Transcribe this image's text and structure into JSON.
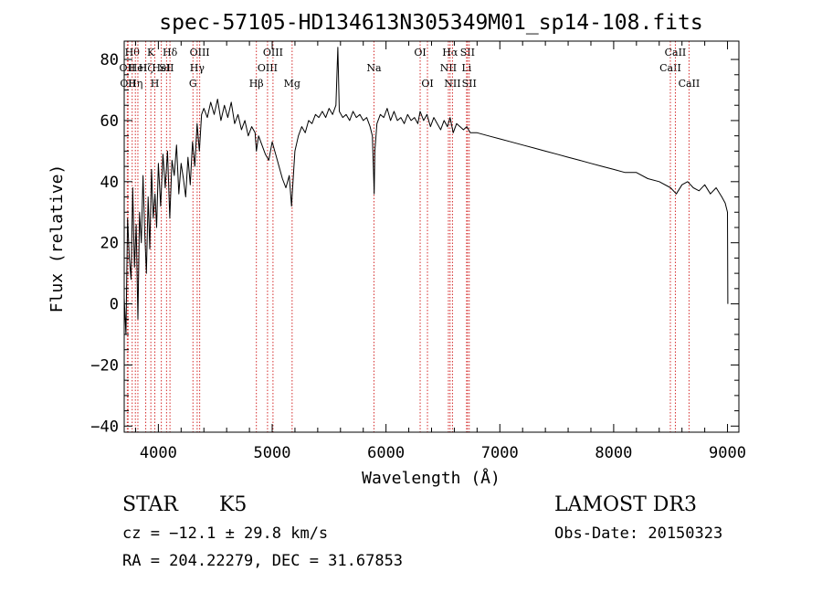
{
  "chart_data": {
    "type": "line",
    "title": "spec-57105-HD134613N305349M01_sp14-108.fits",
    "xlabel": "Wavelength (Å)",
    "ylabel": "Flux (relative)",
    "xlim": [
      3700,
      9100
    ],
    "ylim": [
      -42,
      86
    ],
    "xticks": [
      4000,
      5000,
      6000,
      7000,
      8000,
      9000
    ],
    "yticks": [
      -40,
      -20,
      0,
      20,
      40,
      60,
      80
    ],
    "xtick_labels": [
      "4000",
      "5000",
      "6000",
      "7000",
      "8000",
      "9000"
    ],
    "ytick_labels": [
      "−40",
      "−20",
      "0",
      "20",
      "40",
      "60",
      "80"
    ],
    "grid": false,
    "series": [
      {
        "name": "flux",
        "x": [
          3700,
          3715,
          3730,
          3745,
          3760,
          3775,
          3790,
          3805,
          3820,
          3835,
          3850,
          3865,
          3880,
          3895,
          3910,
          3925,
          3940,
          3955,
          3970,
          3985,
          4000,
          4020,
          4040,
          4060,
          4080,
          4100,
          4120,
          4140,
          4160,
          4180,
          4200,
          4220,
          4240,
          4260,
          4280,
          4300,
          4320,
          4340,
          4360,
          4380,
          4400,
          4430,
          4460,
          4490,
          4520,
          4550,
          4580,
          4610,
          4640,
          4670,
          4700,
          4730,
          4760,
          4790,
          4820,
          4850,
          4861,
          4880,
          4910,
          4940,
          4970,
          5000,
          5030,
          5060,
          5090,
          5120,
          5150,
          5170,
          5183,
          5200,
          5230,
          5260,
          5290,
          5320,
          5350,
          5380,
          5410,
          5440,
          5470,
          5500,
          5530,
          5560,
          5577,
          5590,
          5620,
          5650,
          5680,
          5710,
          5740,
          5770,
          5800,
          5830,
          5860,
          5880,
          5890,
          5896,
          5902,
          5920,
          5950,
          5980,
          6010,
          6040,
          6070,
          6100,
          6130,
          6160,
          6190,
          6220,
          6250,
          6280,
          6300,
          6330,
          6360,
          6390,
          6420,
          6450,
          6480,
          6510,
          6540,
          6563,
          6590,
          6620,
          6650,
          6680,
          6710,
          6740,
          6800,
          6900,
          7000,
          7100,
          7200,
          7300,
          7400,
          7500,
          7600,
          7700,
          7800,
          7900,
          8000,
          8100,
          8200,
          8300,
          8400,
          8500,
          8550,
          8600,
          8650,
          8700,
          8750,
          8800,
          8850,
          8900,
          8950,
          8980,
          9000,
          9003
        ],
        "y": [
          2,
          -10,
          28,
          15,
          8,
          38,
          12,
          26,
          -5,
          30,
          20,
          42,
          24,
          10,
          35,
          18,
          44,
          28,
          36,
          25,
          46,
          32,
          49,
          38,
          50,
          28,
          47,
          42,
          52,
          36,
          46,
          41,
          35,
          48,
          39,
          53,
          45,
          59,
          50,
          62,
          64,
          61,
          66,
          62,
          67,
          60,
          65,
          61,
          66,
          59,
          62,
          57,
          60,
          55,
          58,
          56,
          50,
          55,
          52,
          49,
          47,
          53,
          49,
          45,
          41,
          38,
          42,
          32,
          40,
          50,
          55,
          58,
          56,
          60,
          59,
          62,
          61,
          63,
          61,
          64,
          62,
          65,
          84,
          63,
          61,
          62,
          60,
          63,
          61,
          62,
          60,
          61,
          58,
          55,
          44,
          36,
          50,
          59,
          62,
          61,
          64,
          60,
          63,
          60,
          61,
          59,
          62,
          60,
          61,
          59,
          63,
          60,
          62,
          58,
          61,
          59,
          57,
          60,
          58,
          61,
          56,
          59,
          58,
          57,
          58,
          56,
          56,
          55,
          54,
          53,
          52,
          51,
          50,
          49,
          48,
          47,
          46,
          45,
          44,
          43,
          43,
          41,
          40,
          38,
          36,
          39,
          40,
          38,
          37,
          39,
          36,
          38,
          35,
          33,
          30,
          0
        ]
      }
    ],
    "line_markers": [
      {
        "wave": 3727,
        "label": "OII",
        "row": 1
      },
      {
        "wave": 3734,
        "label": "OII",
        "row": 2
      },
      {
        "wave": 3770,
        "label": "Hθ",
        "row": 0
      },
      {
        "wave": 3798,
        "label": "Hη",
        "row": 2
      },
      {
        "wave": 3820,
        "label": "HeI",
        "row": 1
      },
      {
        "wave": 3889,
        "label": "Hζ",
        "row": 1
      },
      {
        "wave": 3934,
        "label": "K",
        "row": 0
      },
      {
        "wave": 3969,
        "label": "H",
        "row": 2
      },
      {
        "wave": 4026,
        "label": "HeI",
        "row": 1
      },
      {
        "wave": 4072,
        "label": "SII",
        "row": 1
      },
      {
        "wave": 4102,
        "label": "Hδ",
        "row": 0
      },
      {
        "wave": 4304,
        "label": "G",
        "row": 2
      },
      {
        "wave": 4341,
        "label": "Hγ",
        "row": 1
      },
      {
        "wave": 4363,
        "label": "OIII",
        "row": 0
      },
      {
        "wave": 4861,
        "label": "Hβ",
        "row": 2
      },
      {
        "wave": 4959,
        "label": "OIII",
        "row": 1
      },
      {
        "wave": 5007,
        "label": "OIII",
        "row": 0
      },
      {
        "wave": 5175,
        "label": "Mg",
        "row": 2
      },
      {
        "wave": 5894,
        "label": "Na",
        "row": 1
      },
      {
        "wave": 6300,
        "label": "OI",
        "row": 0
      },
      {
        "wave": 6364,
        "label": "OI",
        "row": 2
      },
      {
        "wave": 6548,
        "label": "NII",
        "row": 1
      },
      {
        "wave": 6563,
        "label": "Hα",
        "row": 0
      },
      {
        "wave": 6584,
        "label": "NII",
        "row": 2
      },
      {
        "wave": 6708,
        "label": "Li",
        "row": 1
      },
      {
        "wave": 6716,
        "label": "SII",
        "row": 0
      },
      {
        "wave": 6731,
        "label": "SII",
        "row": 2
      },
      {
        "wave": 8498,
        "label": "CaII",
        "row": 1
      },
      {
        "wave": 8542,
        "label": "CaII",
        "row": 0
      },
      {
        "wave": 8662,
        "label": "CaII",
        "row": 2
      }
    ]
  },
  "info": {
    "object_class": "STAR",
    "subclass": "K5",
    "survey": "LAMOST DR3",
    "redshift": "cz = −12.1 ± 29.8 km/s",
    "obs_date": "Obs-Date: 20150323",
    "coords": "RA = 204.22279, DEC =  31.67853"
  },
  "colors": {
    "spectrum": "#000000",
    "marker_line": "#d42a2a",
    "axis": "#000000",
    "background": "#ffffff"
  }
}
